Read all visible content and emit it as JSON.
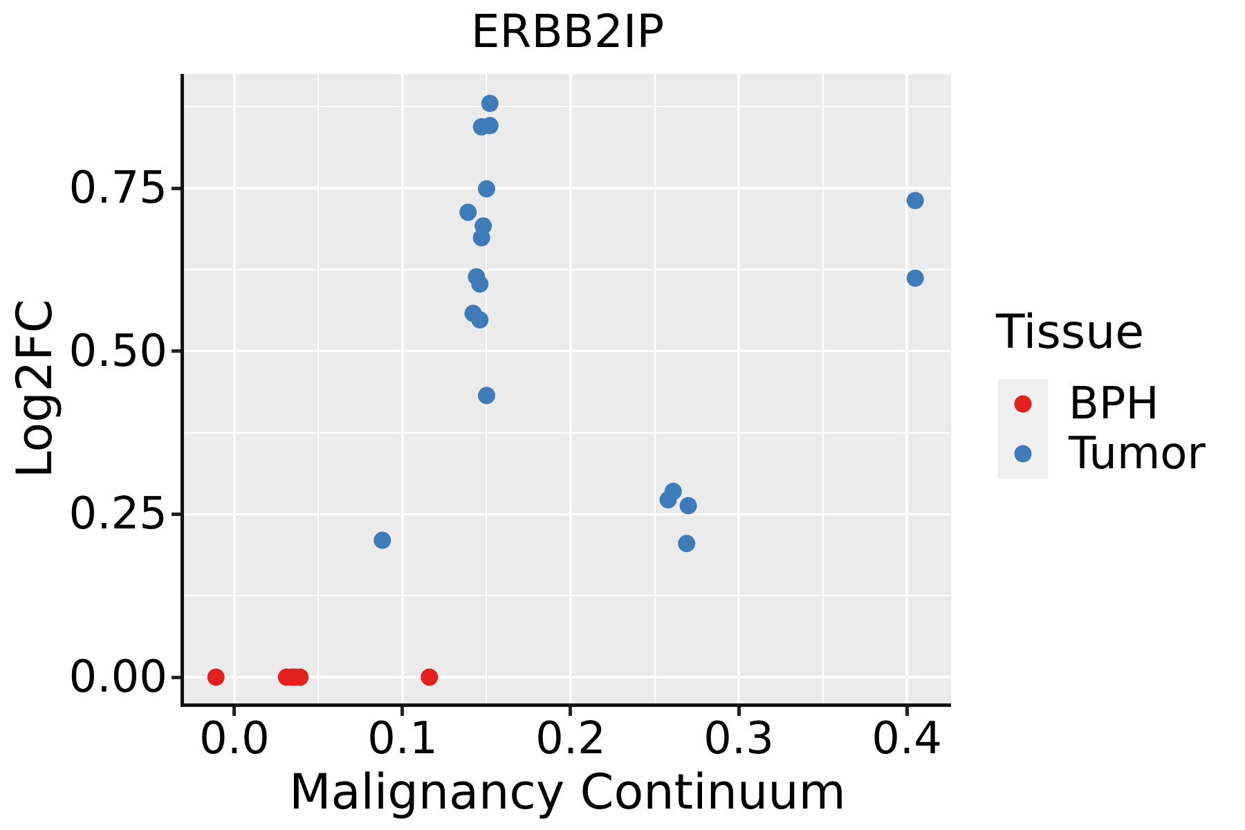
{
  "chart_data": {
    "type": "scatter",
    "title": "ERBB2IP",
    "xlabel": "Malignancy Continuum",
    "ylabel": "Log2FC",
    "x_domain": [
      -0.03,
      0.4263
    ],
    "y_domain": [
      -0.0403,
      0.9251
    ],
    "x_ticks": [
      {
        "value": 0.0,
        "label": "0.0"
      },
      {
        "value": 0.1,
        "label": "0.1"
      },
      {
        "value": 0.2,
        "label": "0.2"
      },
      {
        "value": 0.3,
        "label": "0.3"
      },
      {
        "value": 0.4,
        "label": "0.4"
      }
    ],
    "x_minor_gridlines": [
      0.05,
      0.15,
      0.25,
      0.35
    ],
    "y_ticks": [
      {
        "value": 0.0,
        "label": "0.00"
      },
      {
        "value": 0.25,
        "label": "0.25"
      },
      {
        "value": 0.5,
        "label": "0.50"
      },
      {
        "value": 0.75,
        "label": "0.75"
      }
    ],
    "y_minor_gridlines": [
      0.125,
      0.375,
      0.625,
      0.875
    ],
    "grid": "on",
    "panel_background": "#ebebeb",
    "gridline_color": "#ffffff",
    "marker_radius_px": 12.5,
    "legend": {
      "title": "Tissue",
      "position": "right",
      "key_background": "#f0f0f0"
    },
    "series": [
      {
        "name": "BPH",
        "color": "#e3201d",
        "points": [
          [
            -0.011,
            0.0
          ],
          [
            0.031,
            0.0
          ],
          [
            0.034,
            0.0
          ],
          [
            0.036,
            0.0
          ],
          [
            0.039,
            0.0
          ],
          [
            0.116,
            0.0
          ]
        ]
      },
      {
        "name": "Tumor",
        "color": "#3d7cb8",
        "points": [
          [
            0.152,
            0.88
          ],
          [
            0.147,
            0.844
          ],
          [
            0.152,
            0.846
          ],
          [
            0.15,
            0.749
          ],
          [
            0.139,
            0.713
          ],
          [
            0.148,
            0.692
          ],
          [
            0.147,
            0.674
          ],
          [
            0.144,
            0.614
          ],
          [
            0.146,
            0.603
          ],
          [
            0.142,
            0.558
          ],
          [
            0.146,
            0.548
          ],
          [
            0.15,
            0.432
          ],
          [
            0.088,
            0.21
          ],
          [
            0.261,
            0.285
          ],
          [
            0.258,
            0.272
          ],
          [
            0.27,
            0.263
          ],
          [
            0.269,
            0.205
          ],
          [
            0.405,
            0.731
          ],
          [
            0.405,
            0.612
          ]
        ]
      }
    ]
  }
}
